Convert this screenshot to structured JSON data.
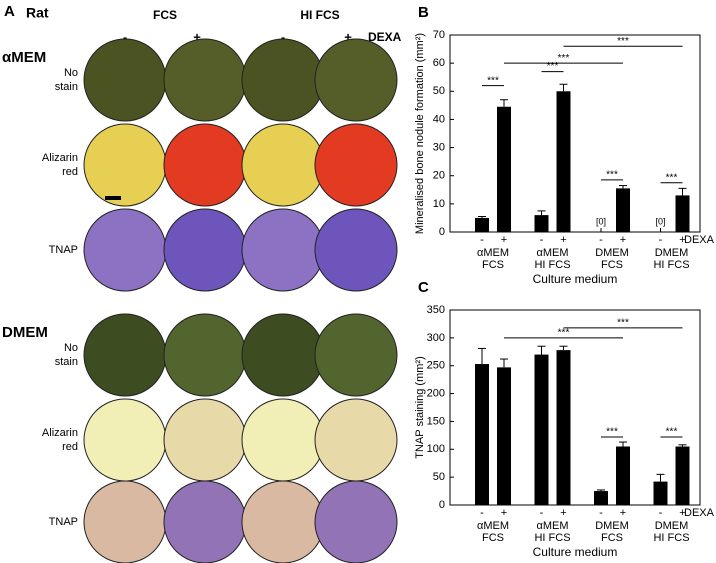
{
  "panel_a": {
    "label": "A",
    "species": "Rat",
    "serum": [
      "FCS",
      "HI FCS"
    ],
    "dexa": [
      "-",
      "+",
      "-",
      "+"
    ],
    "dexa_label": "DEXA",
    "blocks": [
      {
        "medium": "αMEM",
        "rows": [
          [
            "No",
            "stain"
          ],
          [
            "Alizarin",
            "red"
          ],
          [
            "TNAP"
          ]
        ]
      },
      {
        "medium": "DMEM",
        "rows": [
          [
            "No",
            "stain"
          ],
          [
            "Alizarin",
            "red"
          ],
          [
            "TNAP"
          ]
        ]
      }
    ]
  },
  "chart_data": [
    {
      "type": "bar",
      "panel": "B",
      "ylabel": "Mineralised bone nodule formation (mm²)",
      "xlabel": "Culture medium",
      "dexa_label": "DEXA",
      "categories": [
        "-",
        "+",
        "-",
        "+",
        "-",
        "+",
        "-",
        "+"
      ],
      "groups": [
        [
          "αMEM",
          "FCS"
        ],
        [
          "αMEM",
          "HI FCS"
        ],
        [
          "DMEM",
          "FCS"
        ],
        [
          "DMEM",
          "HI FCS"
        ]
      ],
      "values": [
        5,
        44.5,
        6,
        50,
        0,
        15.5,
        0,
        13
      ],
      "errors": [
        0.5,
        2.5,
        1.5,
        2.5,
        0,
        1,
        0,
        2.5
      ],
      "value_labels": [
        null,
        null,
        null,
        null,
        "[0]",
        null,
        "[0]",
        null
      ],
      "annotations": [
        "***",
        "***",
        "***",
        "***",
        "***",
        "***"
      ],
      "color": "#000000",
      "ylim": [
        0,
        70
      ],
      "yticks": [
        0,
        10,
        20,
        30,
        40,
        50,
        60,
        70
      ]
    },
    {
      "type": "bar",
      "panel": "C",
      "ylabel": "TNAP staining (mm²)",
      "xlabel": "Culture medium",
      "dexa_label": "DEXA",
      "categories": [
        "-",
        "+",
        "-",
        "+",
        "-",
        "+",
        "-",
        "+"
      ],
      "groups": [
        [
          "αMEM",
          "FCS"
        ],
        [
          "αMEM",
          "HI FCS"
        ],
        [
          "DMEM",
          "FCS"
        ],
        [
          "DMEM",
          "HI FCS"
        ]
      ],
      "values": [
        253,
        247,
        270,
        278,
        25,
        105,
        42,
        105
      ],
      "errors": [
        28,
        15,
        15,
        7,
        2,
        8,
        13,
        3
      ],
      "annotations": [
        "***",
        "***",
        "***",
        "***"
      ],
      "color": "#000000",
      "ylim": [
        0,
        350
      ],
      "yticks": [
        0,
        50,
        100,
        150,
        200,
        250,
        300,
        350
      ]
    }
  ]
}
